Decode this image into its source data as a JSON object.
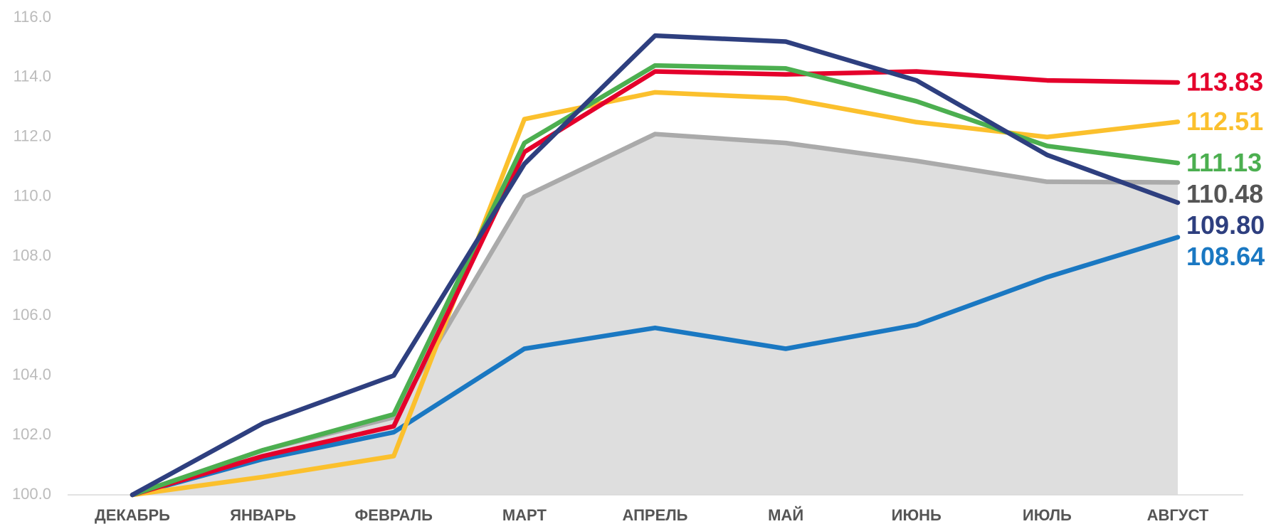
{
  "chart_data": {
    "type": "line",
    "categories": [
      "ДЕКАБРЬ",
      "ЯНВАРЬ",
      "ФЕВРАЛЬ",
      "МАРТ",
      "АПРЕЛЬ",
      "МАЙ",
      "ИЮНЬ",
      "ИЮЛЬ",
      "АВГУСТ"
    ],
    "ylim": [
      100,
      116
    ],
    "yticks": [
      {
        "value": 100,
        "label": "100.0"
      },
      {
        "value": 102,
        "label": "102.0"
      },
      {
        "value": 104,
        "label": "104.0"
      },
      {
        "value": 106,
        "label": "106.0"
      },
      {
        "value": 108,
        "label": "108.0"
      },
      {
        "value": 110,
        "label": "110.0"
      },
      {
        "value": 112,
        "label": "112.0"
      },
      {
        "value": 114,
        "label": "114.0"
      },
      {
        "value": 116,
        "label": "116.0"
      }
    ],
    "grid": false,
    "series": [
      {
        "color": "#aaaaaa",
        "label_color": "#555555",
        "area_color": "#dedede",
        "values": [
          100,
          101.5,
          102.6,
          110.0,
          112.1,
          111.8,
          111.2,
          110.5,
          110.48
        ],
        "value_labels": [
          null,
          null,
          null,
          null,
          null,
          null,
          null,
          null,
          "110.48"
        ]
      },
      {
        "color": "#1a78c2",
        "label_color": "#1a78c2",
        "values": [
          100,
          101.2,
          102.1,
          104.9,
          105.6,
          104.9,
          105.7,
          107.3,
          108.64
        ],
        "value_labels": [
          null,
          null,
          null,
          null,
          null,
          null,
          null,
          null,
          "108.64"
        ]
      },
      {
        "color": "#fbc02d",
        "label_color": "#fbc02d",
        "values": [
          100,
          100.6,
          101.3,
          112.6,
          113.5,
          113.3,
          112.5,
          112.0,
          112.51
        ],
        "value_labels": [
          null,
          null,
          null,
          null,
          null,
          null,
          null,
          null,
          "112.51"
        ]
      },
      {
        "color": "#e4002b",
        "label_color": "#e4002b",
        "values": [
          100,
          101.3,
          102.3,
          111.5,
          114.2,
          114.1,
          114.2,
          113.9,
          113.83
        ],
        "value_labels": [
          null,
          null,
          null,
          null,
          null,
          null,
          null,
          null,
          "113.83"
        ]
      },
      {
        "color": "#4caf50",
        "label_color": "#4caf50",
        "values": [
          100,
          101.5,
          102.7,
          111.8,
          114.4,
          114.3,
          113.2,
          111.7,
          111.13
        ],
        "value_labels": [
          null,
          null,
          null,
          null,
          null,
          null,
          null,
          null,
          "111.13"
        ]
      },
      {
        "color": "#2e3f7f",
        "label_color": "#2e3f7f",
        "values": [
          100,
          102.4,
          104.0,
          111.1,
          115.4,
          115.2,
          113.9,
          111.4,
          109.8
        ],
        "value_labels": [
          null,
          null,
          null,
          null,
          null,
          null,
          null,
          null,
          "109.80"
        ]
      }
    ]
  }
}
